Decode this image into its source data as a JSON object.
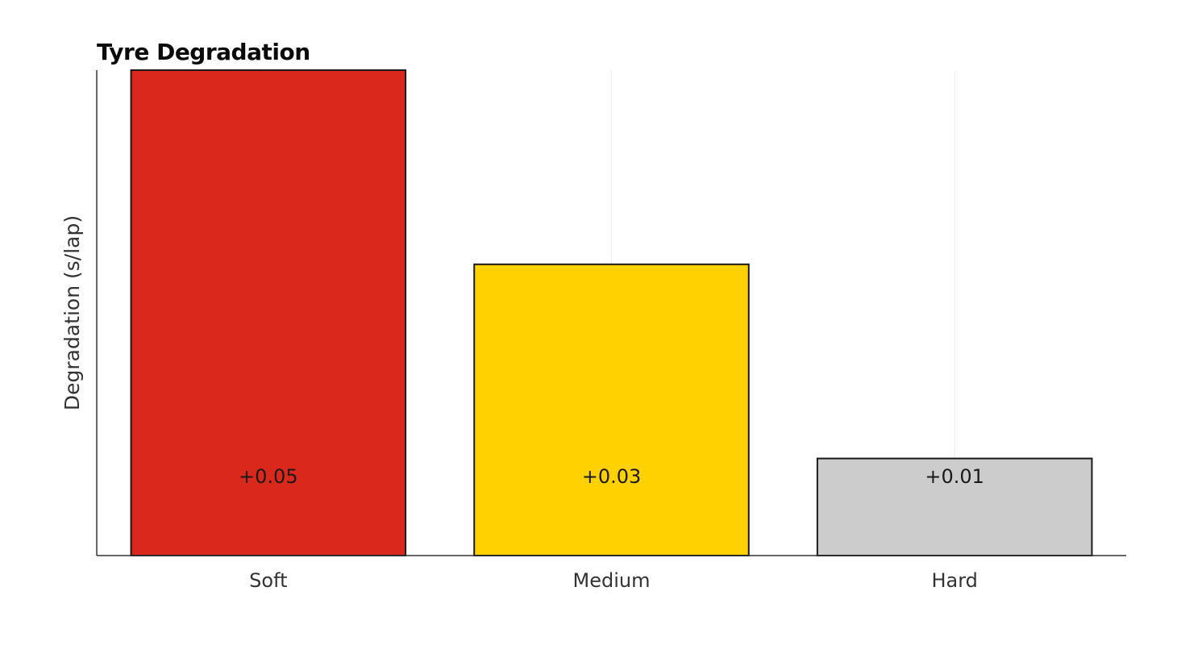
{
  "chart_data": {
    "type": "bar",
    "title": "Tyre Degradation",
    "xlabel": "",
    "ylabel": "Degradation (s/lap)",
    "categories": [
      "Soft",
      "Medium",
      "Hard"
    ],
    "values": [
      0.05,
      0.03,
      0.01
    ],
    "value_labels": [
      "+0.05",
      "+0.03",
      "+0.01"
    ],
    "colors": [
      "#da291c",
      "#ffd100",
      "#cccccc"
    ],
    "ylim": [
      0,
      0.05
    ],
    "grid": true,
    "legend": "none"
  }
}
